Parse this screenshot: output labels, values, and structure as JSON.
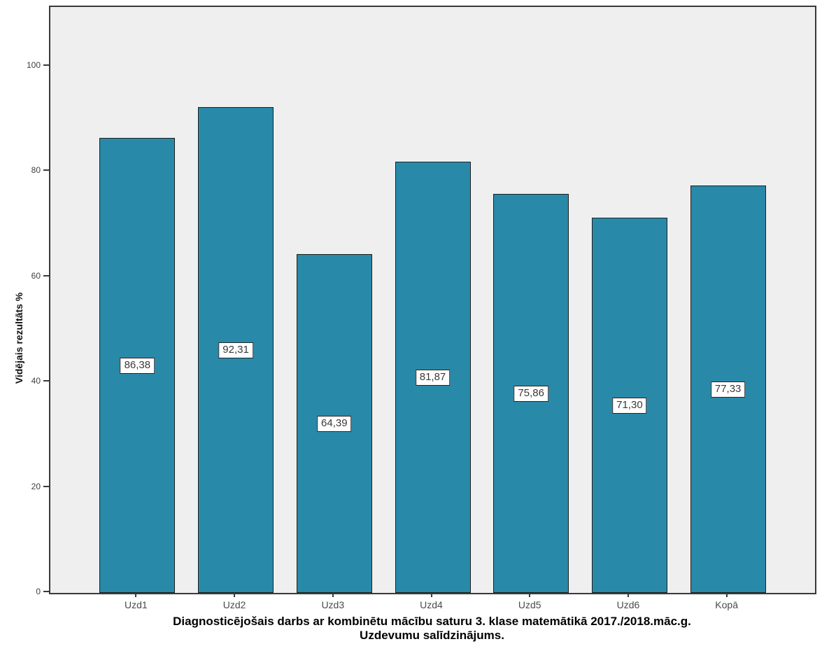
{
  "chart_data": {
    "type": "bar",
    "categories": [
      "Uzd1",
      "Uzd2",
      "Uzd3",
      "Uzd4",
      "Uzd5",
      "Uzd6",
      "Kopā"
    ],
    "values": [
      86.38,
      92.31,
      64.39,
      81.87,
      75.86,
      71.3,
      77.33
    ],
    "value_labels": [
      "86,38",
      "92,31",
      "64,39",
      "81,87",
      "75,86",
      "71,30",
      "77,33"
    ],
    "title": "Diagnosticējošais darbs ar kombinētu mācību saturu 3. klase matemātikā 2017./2018.māc.g.",
    "subtitle": "Uzdevumu salīdzinājums.",
    "xlabel": "",
    "ylabel": "Vidējais rezultāts %",
    "ylim": [
      0,
      111.3
    ],
    "yticks": [
      0,
      20,
      40,
      60,
      80,
      100
    ],
    "grid": false,
    "legend": false,
    "value_label_position": "bar-midpoint",
    "colors": {
      "bar_fill": "#2989A9",
      "bar_border": "#1F1F1F",
      "plot_background": "#EFEFEF",
      "frame": "#3A3A3A",
      "label_box_background": "#FFFFFF",
      "label_box_border": "#262626",
      "label_text": "#3A3A3A",
      "tick_text": "#404040",
      "title_text": "#000000"
    }
  }
}
